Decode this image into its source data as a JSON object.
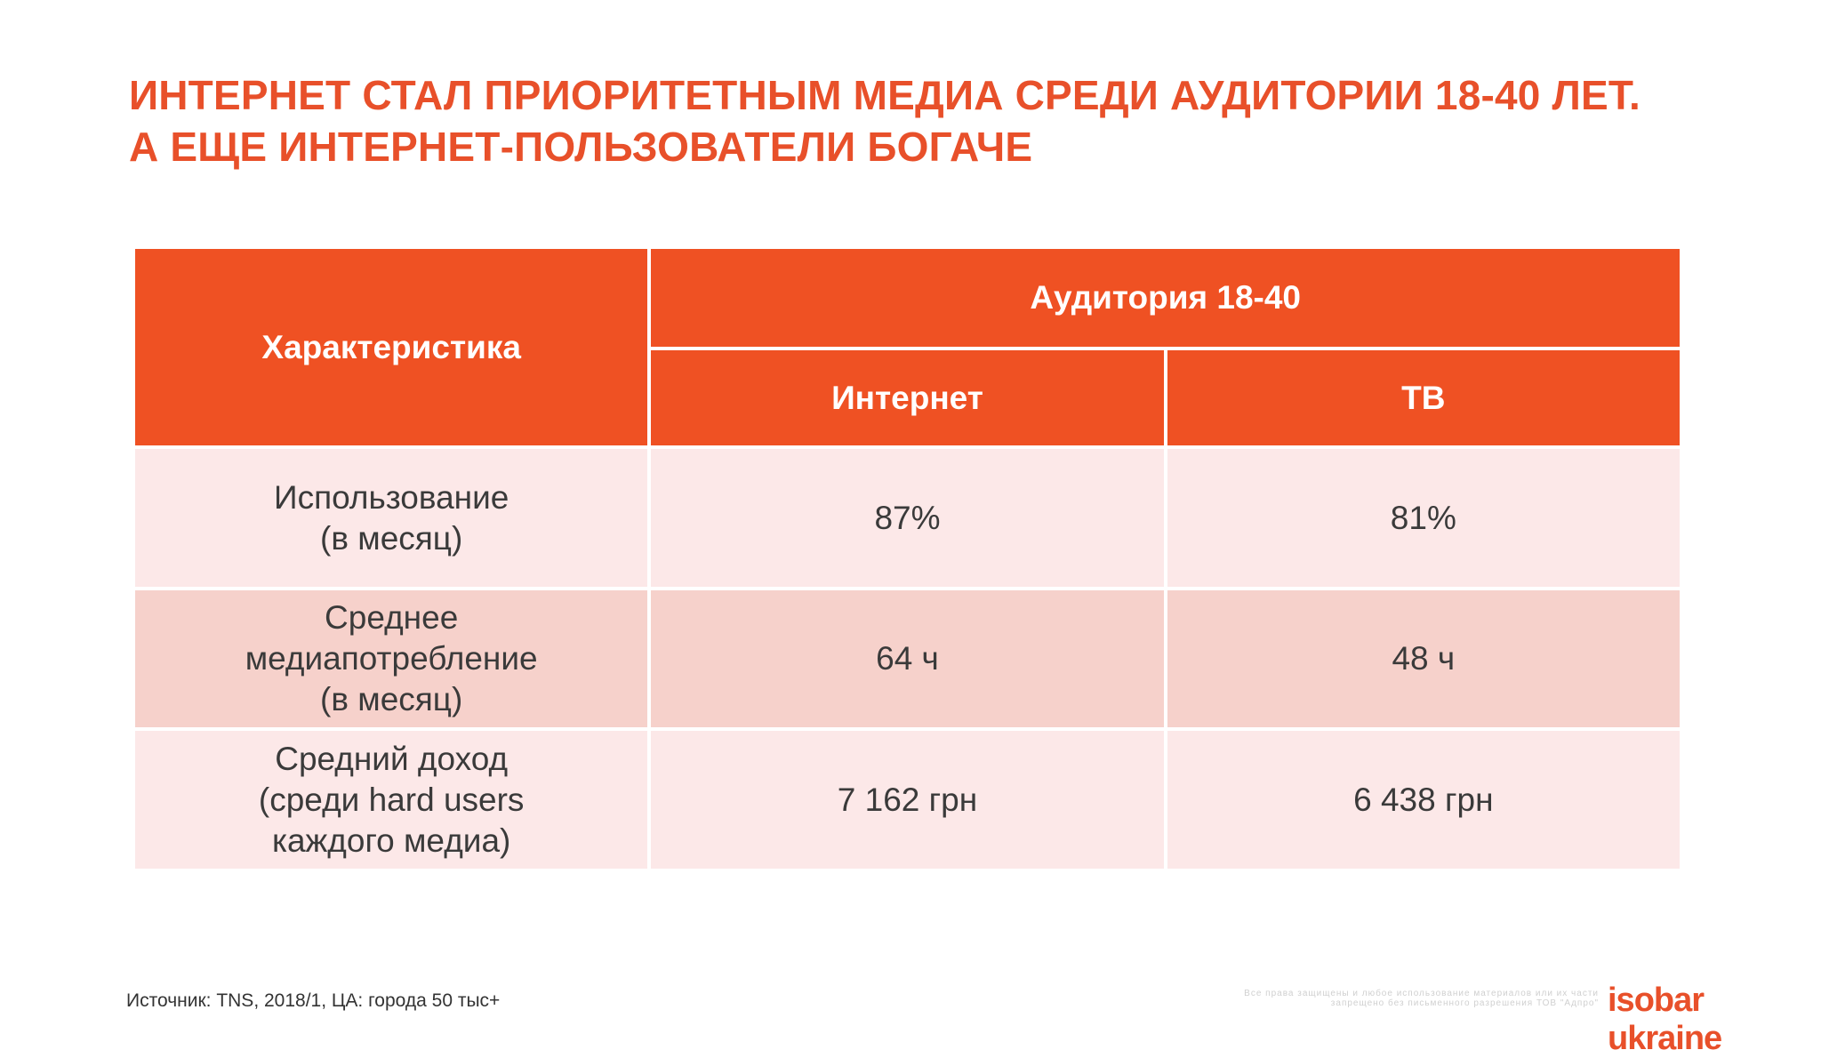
{
  "title": {
    "line1": "ИНТЕРНЕТ СТАЛ ПРИОРИТЕТНЫМ МЕДИА СРЕДИ АУДИТОРИИ 18-40 ЛЕТ.",
    "line2": "А ЕЩЕ ИНТЕРНЕТ-ПОЛЬЗОВАТЕЛИ БОГАЧЕ"
  },
  "table": {
    "header": {
      "characteristic": "Характеристика",
      "audience": "Аудитория 18-40",
      "internet": "Интернет",
      "tv": "ТВ"
    },
    "rows": [
      {
        "label": "Использование\n(в месяц)",
        "internet": "87%",
        "tv": "81%"
      },
      {
        "label": "Среднее\nмедиапотребление\n(в месяц)",
        "internet": "64 ч",
        "tv": "48 ч"
      },
      {
        "label": "Средний доход\n(среди hard users\nкаждого медиа)",
        "internet": "7 162 грн",
        "tv": "6 438 грн"
      }
    ]
  },
  "footer": {
    "source": "Источник: TNS, 2018/1, ЦА: города 50 тыс+",
    "rights": "Все права защищены и любое использование материалов или их части запрещено без письменного разрешения ТОВ \"Адпро\"",
    "logo": "isobar ukraine"
  },
  "colors": {
    "accent": "#ef5123",
    "row_light": "#fce8e8",
    "row_dark": "#f6d1cb"
  }
}
